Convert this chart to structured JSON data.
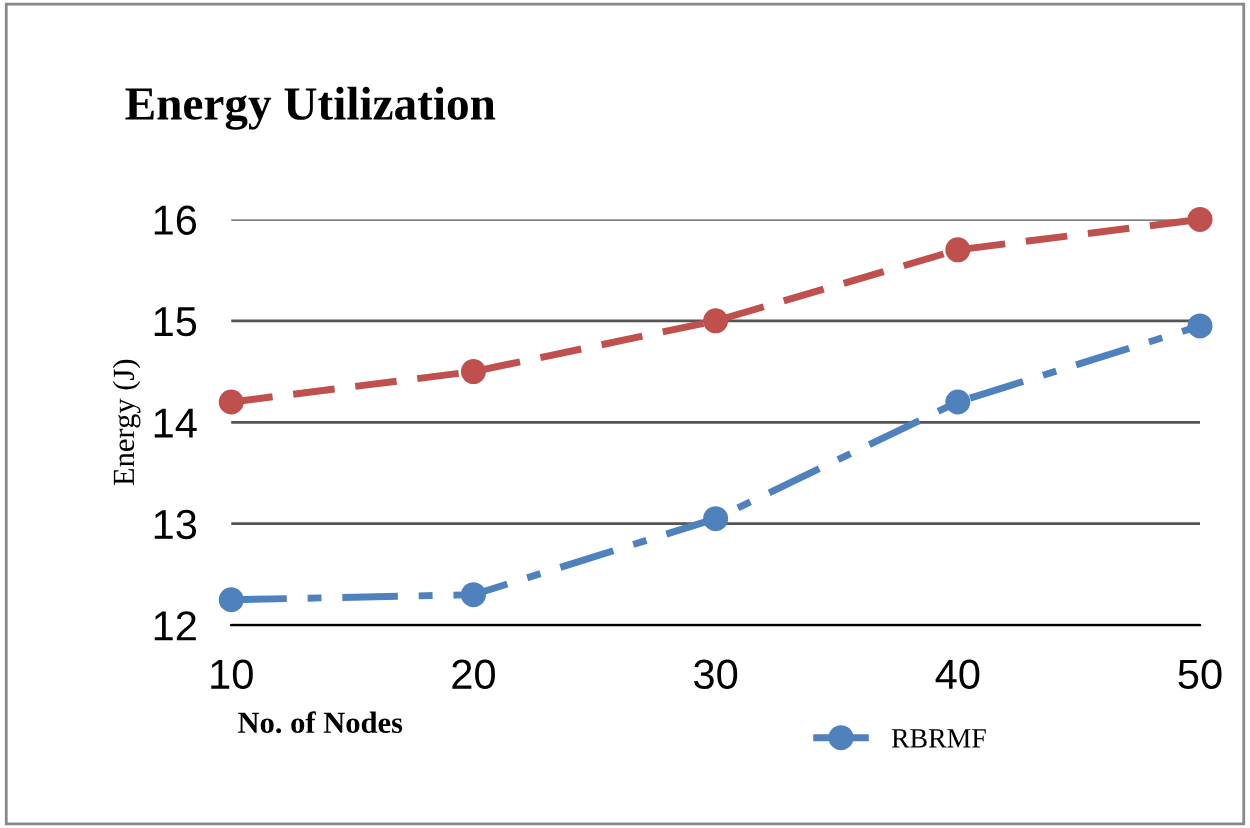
{
  "chart_data": {
    "type": "line",
    "title": "Energy Utilization",
    "xlabel": "No. of Nodes",
    "ylabel": "Energy (J)",
    "x": [
      10,
      20,
      30,
      40,
      50
    ],
    "series": [
      {
        "color": "#c0504d",
        "values": [
          14.2,
          14.5,
          15.0,
          15.7,
          16.0
        ],
        "line_style": "dashed"
      },
      {
        "name": "RBRMF",
        "color": "#4f81bd",
        "values": [
          12.25,
          12.3,
          13.05,
          14.2,
          14.95
        ],
        "line_style": "dashdot"
      }
    ],
    "xlim": [
      10,
      50
    ],
    "ylim": [
      12,
      16
    ],
    "xticks": [
      10,
      20,
      30,
      40,
      50
    ],
    "yticks": [
      12,
      13,
      14,
      15,
      16
    ],
    "grid": "y",
    "legend": "bottom",
    "marker": "circle"
  }
}
